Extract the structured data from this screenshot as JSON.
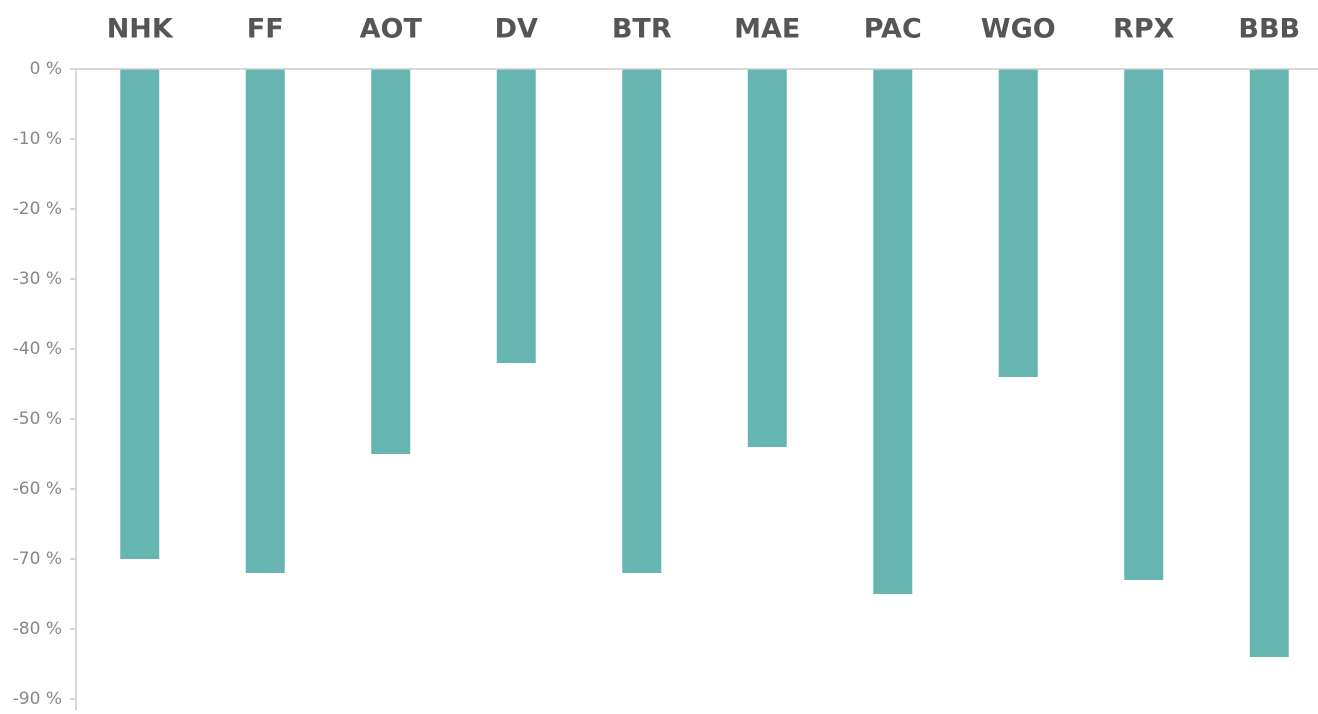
{
  "chart_data": {
    "type": "bar",
    "categories": [
      "NHK",
      "FF",
      "AOT",
      "DV",
      "BTR",
      "MAE",
      "PAC",
      "WGO",
      "RPX",
      "BBB"
    ],
    "values": [
      -70,
      -72,
      -55,
      -42,
      -72,
      -54,
      -75,
      -44,
      -73,
      -84
    ],
    "color": "#66b5b1",
    "ylim": [
      -90,
      0
    ],
    "yticks": [
      {
        "value": 0,
        "label": "0 %"
      },
      {
        "value": -10,
        "label": "-10 %"
      },
      {
        "value": -20,
        "label": "-20 %"
      },
      {
        "value": -30,
        "label": "-30 %"
      },
      {
        "value": -40,
        "label": "-40 %"
      },
      {
        "value": -50,
        "label": "-50 %"
      },
      {
        "value": -60,
        "label": "-60 %"
      },
      {
        "value": -70,
        "label": "-70 %"
      },
      {
        "value": -80,
        "label": "-80 %"
      },
      {
        "value": -90,
        "label": "-90 %"
      }
    ],
    "grid": false
  }
}
